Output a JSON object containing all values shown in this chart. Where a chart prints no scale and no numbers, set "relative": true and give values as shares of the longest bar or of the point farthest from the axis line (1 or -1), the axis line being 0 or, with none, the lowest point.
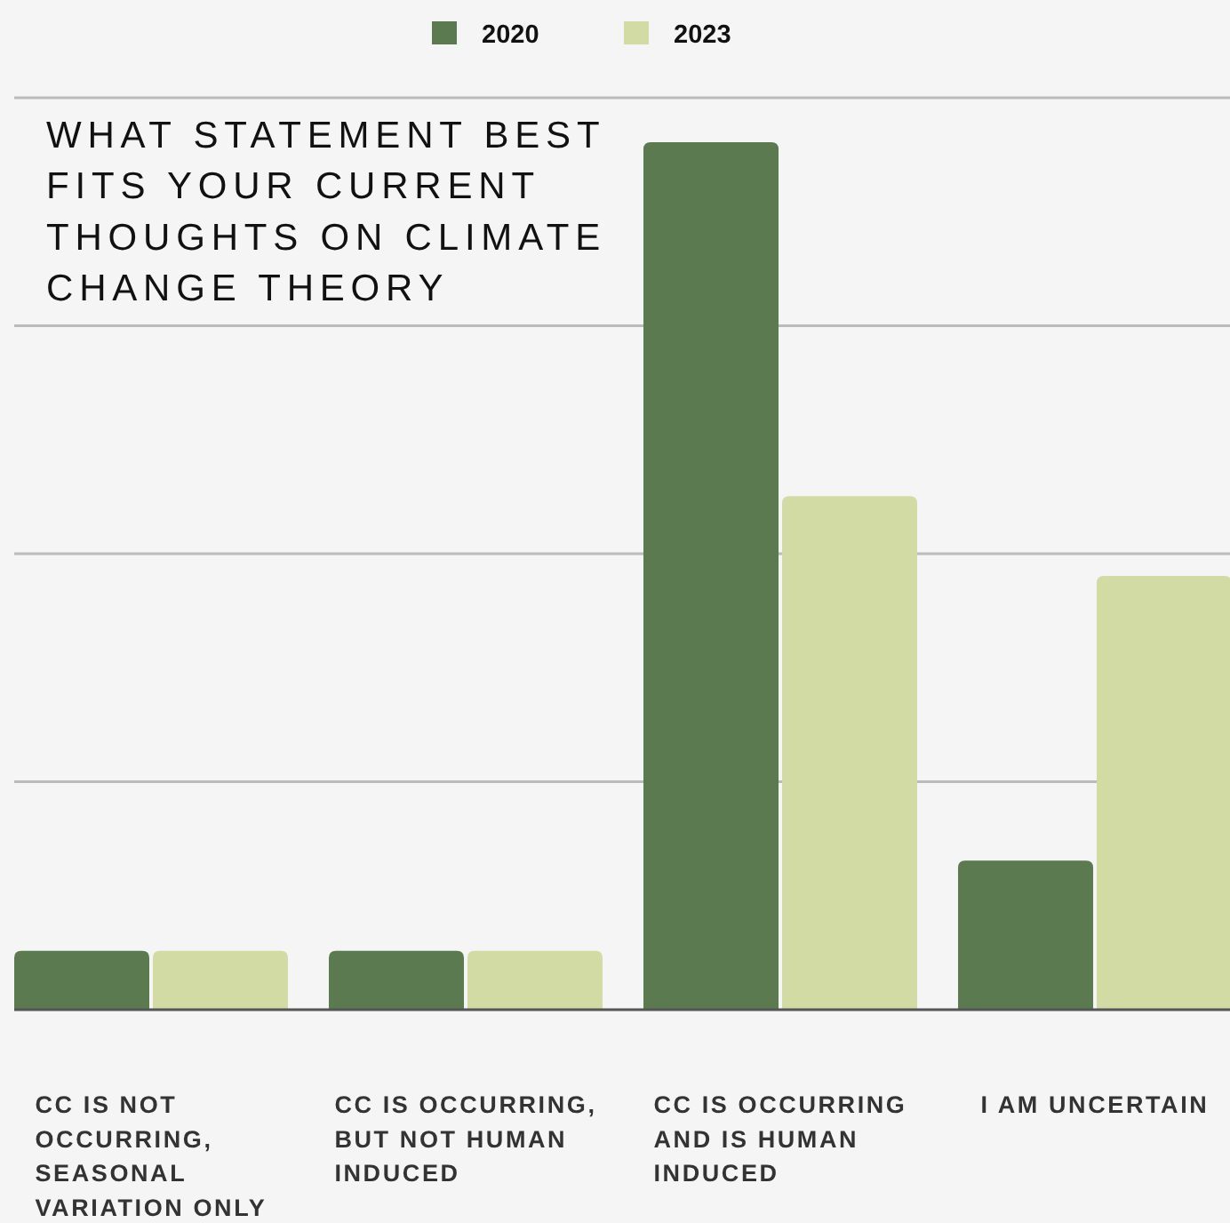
{
  "chart_data": {
    "type": "bar",
    "title": "WHAT STATEMENT BEST FITS YOUR CURRENT THOUGHTS ON CLIMATE CHANGE THEORY",
    "categories": [
      "CC IS NOT OCCURRING, SEASONAL VARIATION ONLY",
      "CC IS OCCURRING, BUT NOT HUMAN INDUCED",
      "CC IS OCCURRING AND IS HUMAN INDUCED",
      "I AM UNCERTAIN"
    ],
    "series": [
      {
        "name": "2020",
        "color": "#5c7a50",
        "values": [
          0.068,
          0.068,
          1,
          0.172
        ]
      },
      {
        "name": "2023",
        "color": "#d3dba5",
        "values": [
          0.068,
          0.068,
          0.592,
          0.5
        ]
      }
    ],
    "relative": true,
    "grid": "y",
    "legend": "top"
  }
}
